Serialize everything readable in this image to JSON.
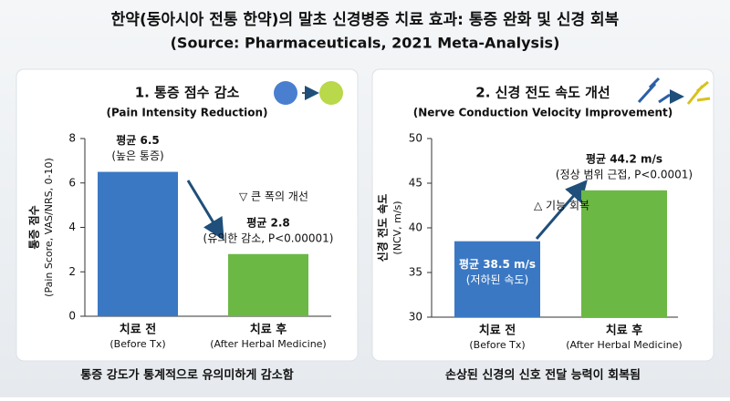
{
  "header": {
    "title": "한약(동아시아 전통 한약)의 말초 신경병증 치료 효과: 통증 완화 및 신경 회복",
    "subtitle": "(Source: Pharmaceuticals, 2021 Meta-Analysis)"
  },
  "chart_data": [
    {
      "type": "bar",
      "title": "1. 통증 점수 감소",
      "subtitle": "(Pain Intensity Reduction)",
      "y_label": "통증 점수",
      "y_sublabel": "(Pain Score, VAS/NRS, 0-10)",
      "categories": [
        "치료 전",
        "치료 후"
      ],
      "category_sublabels": [
        "(Before Tx)",
        "(After Herbal Medicine)"
      ],
      "values": [
        6.5,
        2.8
      ],
      "value_labels": [
        "평균 6.5",
        "평균 2.8"
      ],
      "value_notes": [
        "(높은 통증)",
        "(유의한 감소, P<0.00001)"
      ],
      "label_inside": [
        false,
        false
      ],
      "colors": [
        "#3b78c3",
        "#6cb845"
      ],
      "ylim": [
        0,
        8
      ],
      "yticks": [
        0,
        2,
        4,
        6,
        8
      ],
      "annotation": "▽ 큰 폭의 개선",
      "caption": "통증 강도가 통계적으로 유의미하게 감소함"
    },
    {
      "type": "bar",
      "title": "2. 신경 전도 속도 개선",
      "subtitle": "(Nerve Conduction Velocity Improvement)",
      "y_label": "신경 전도 속도",
      "y_sublabel": "(NCV, m/s)",
      "categories": [
        "치료 전",
        "치료 후"
      ],
      "category_sublabels": [
        "(Before Tx)",
        "(After Herbal Medicine)"
      ],
      "values": [
        38.5,
        44.2
      ],
      "value_labels": [
        "평균 38.5 m/s",
        "평균 44.2 m/s"
      ],
      "value_notes": [
        "(저하된 속도)",
        "(정상 범위 근접, P<0.0001)"
      ],
      "label_inside": [
        true,
        false
      ],
      "colors": [
        "#3b78c3",
        "#6cb845"
      ],
      "ylim": [
        30,
        50
      ],
      "yticks": [
        30,
        35,
        40,
        45,
        50
      ],
      "annotation": "△ 기능 회복",
      "caption": "손상된 신경의 신호 전달 능력이 회복됨"
    }
  ]
}
